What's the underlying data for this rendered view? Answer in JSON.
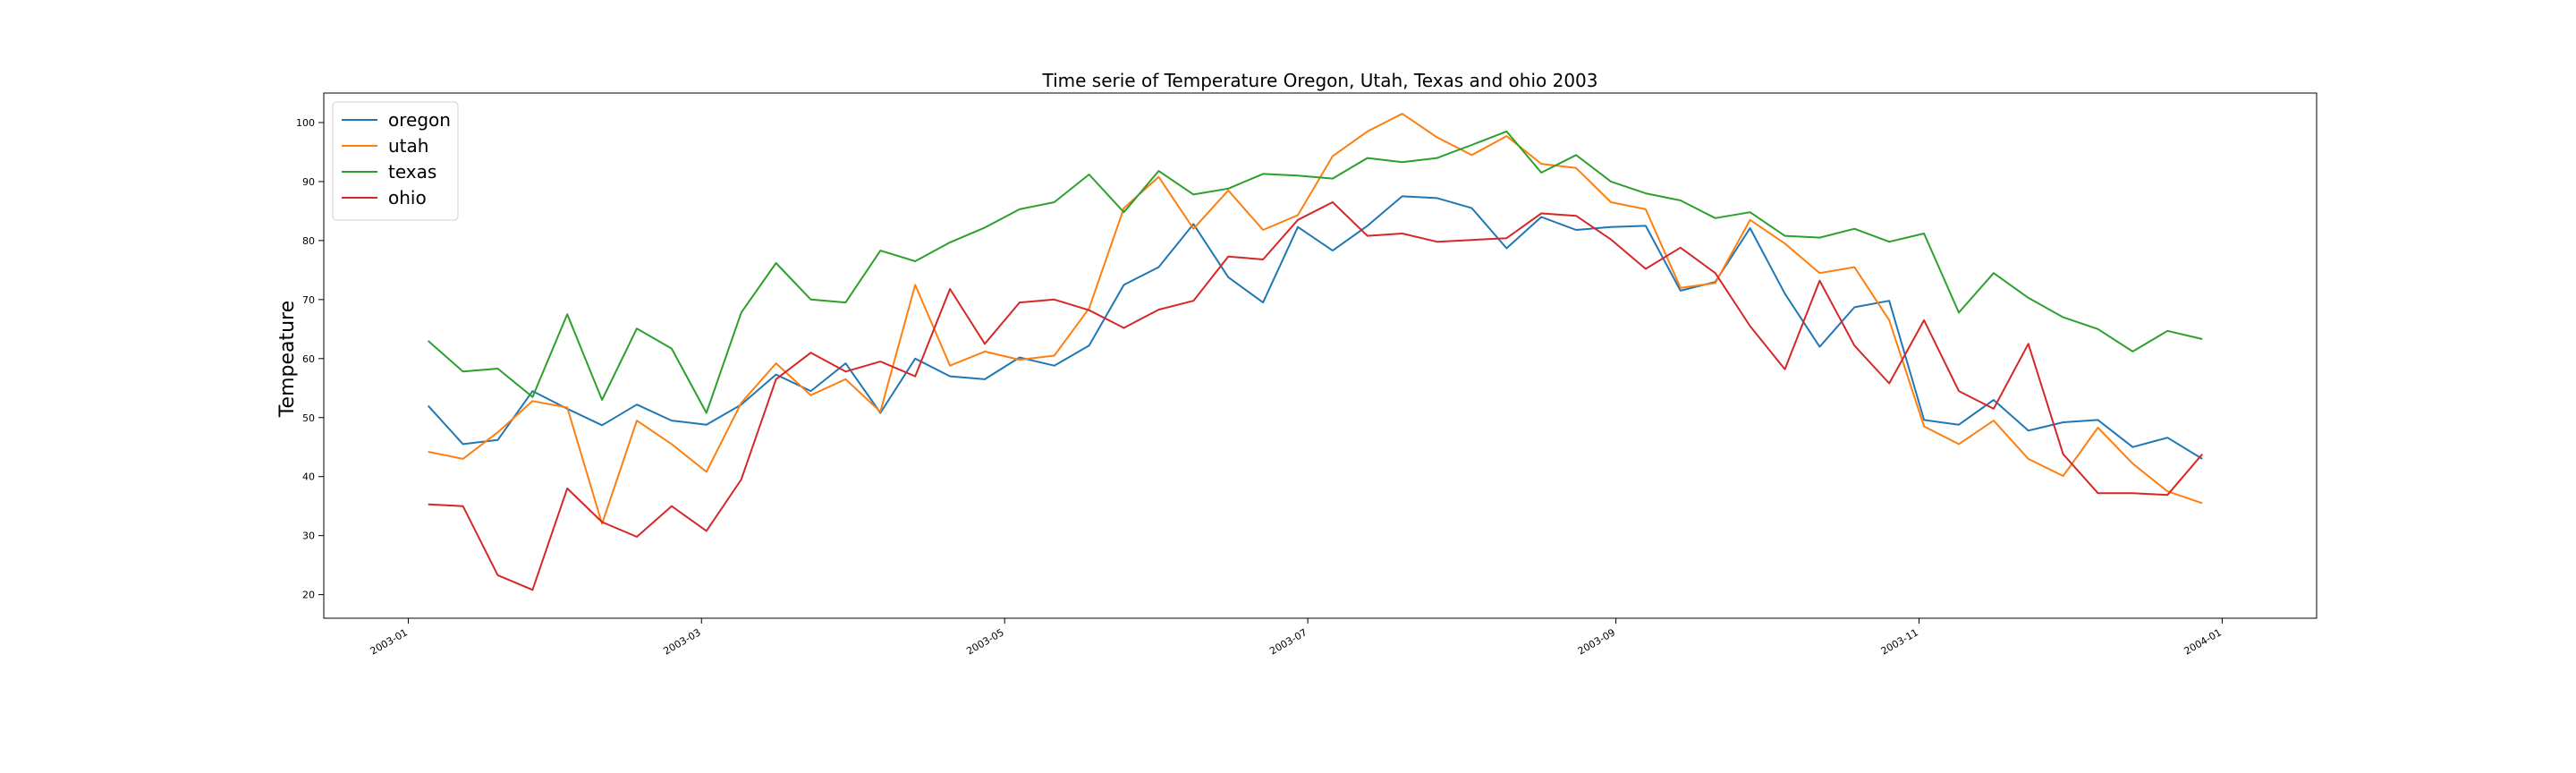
{
  "chart_data": {
    "type": "line",
    "title": "Time serie of Temperature Oregon, Utah, Texas and ohio 2003",
    "xlabel": "",
    "ylabel": "Tempeature",
    "xlim": [
      "2002-12-15",
      "2004-01-20"
    ],
    "ylim": [
      16,
      105
    ],
    "yticks": [
      20,
      30,
      40,
      50,
      60,
      70,
      80,
      90,
      100
    ],
    "xticks": [
      "2003-01",
      "2003-03",
      "2003-05",
      "2003-07",
      "2003-09",
      "2003-11",
      "2004-01"
    ],
    "grid": false,
    "legend": "top-left",
    "x": [
      "2003-01-05",
      "2003-01-12",
      "2003-01-19",
      "2003-01-26",
      "2003-02-02",
      "2003-02-09",
      "2003-02-16",
      "2003-02-23",
      "2003-03-02",
      "2003-03-09",
      "2003-03-16",
      "2003-03-23",
      "2003-03-30",
      "2003-04-06",
      "2003-04-13",
      "2003-04-20",
      "2003-04-27",
      "2003-05-04",
      "2003-05-11",
      "2003-05-18",
      "2003-05-25",
      "2003-06-01",
      "2003-06-08",
      "2003-06-15",
      "2003-06-22",
      "2003-06-29",
      "2003-07-06",
      "2003-07-13",
      "2003-07-20",
      "2003-07-27",
      "2003-08-03",
      "2003-08-10",
      "2003-08-17",
      "2003-08-24",
      "2003-08-31",
      "2003-09-07",
      "2003-09-14",
      "2003-09-21",
      "2003-09-28",
      "2003-10-05",
      "2003-10-12",
      "2003-10-19",
      "2003-10-26",
      "2003-11-02",
      "2003-11-09",
      "2003-11-16",
      "2003-11-23",
      "2003-11-30",
      "2003-12-07",
      "2003-12-14",
      "2003-12-21",
      "2003-12-28"
    ],
    "series": [
      {
        "name": "oregon",
        "color": "#1f77b4",
        "values": [
          52,
          45.5,
          46.2,
          54.5,
          51.5,
          48.7,
          52.2,
          49.5,
          48.8,
          52.2,
          57.3,
          54.5,
          59.2,
          50.8,
          60,
          57,
          56.5,
          60.2,
          58.8,
          62.2,
          72.5,
          75.5,
          82.8,
          73.8,
          69.5,
          82.3,
          78.3,
          82.5,
          87.5,
          87.2,
          85.5,
          78.7,
          84,
          81.8,
          82.3,
          82.5,
          71.5,
          73,
          82.1,
          71,
          62,
          68.7,
          69.8,
          49.6,
          48.8,
          53,
          47.8,
          49.2,
          49.6,
          45,
          46.6,
          43
        ]
      },
      {
        "name": "utah",
        "color": "#ff7f0e",
        "values": [
          44.2,
          43,
          47.5,
          52.8,
          51.7,
          32,
          49.5,
          45.5,
          40.8,
          52.5,
          59.2,
          53.8,
          56.5,
          51,
          72.5,
          58.8,
          61.2,
          59.8,
          60.5,
          68.5,
          85.5,
          90.8,
          82,
          88.5,
          81.8,
          84.3,
          94.3,
          98.5,
          101.5,
          97.5,
          94.5,
          97.7,
          93,
          92.3,
          86.5,
          85.3,
          72,
          72.8,
          83.5,
          79.5,
          74.5,
          75.5,
          66.5,
          48.5,
          45.5,
          49.5,
          43,
          40.1,
          48.3,
          42.2,
          37.5,
          35.5
        ]
      },
      {
        "name": "texas",
        "color": "#2ca02c",
        "values": [
          63,
          57.8,
          58.3,
          53.5,
          67.5,
          53,
          65.1,
          61.7,
          50.8,
          67.8,
          76.2,
          70,
          69.5,
          78.3,
          76.5,
          79.7,
          82.2,
          85.3,
          86.5,
          91.2,
          84.8,
          91.8,
          87.8,
          88.8,
          91.3,
          91,
          90.5,
          94,
          93.3,
          94,
          96.2,
          98.5,
          91.5,
          94.5,
          90,
          88,
          86.8,
          83.8,
          84.8,
          80.8,
          80.5,
          82,
          79.8,
          81.2,
          67.8,
          74.5,
          70.3,
          67,
          65,
          61.2,
          64.7,
          63.3
        ]
      },
      {
        "name": "ohio",
        "color": "#d62728",
        "values": [
          35.3,
          35,
          23.3,
          20.8,
          38,
          32.3,
          29.8,
          35,
          30.8,
          39.5,
          56.5,
          61,
          57.8,
          59.5,
          57,
          71.8,
          62.5,
          69.5,
          70,
          68.2,
          65.2,
          68.3,
          69.8,
          77.3,
          76.8,
          83.5,
          86.5,
          80.8,
          81.2,
          79.8,
          80.1,
          80.4,
          84.6,
          84.2,
          80.2,
          75.2,
          78.8,
          74.5,
          65.5,
          58.2,
          73.2,
          62.2,
          55.8,
          66.5,
          54.5,
          51.5,
          62.5,
          43.8,
          37.2,
          37.2,
          36.9,
          43.8
        ]
      }
    ]
  }
}
